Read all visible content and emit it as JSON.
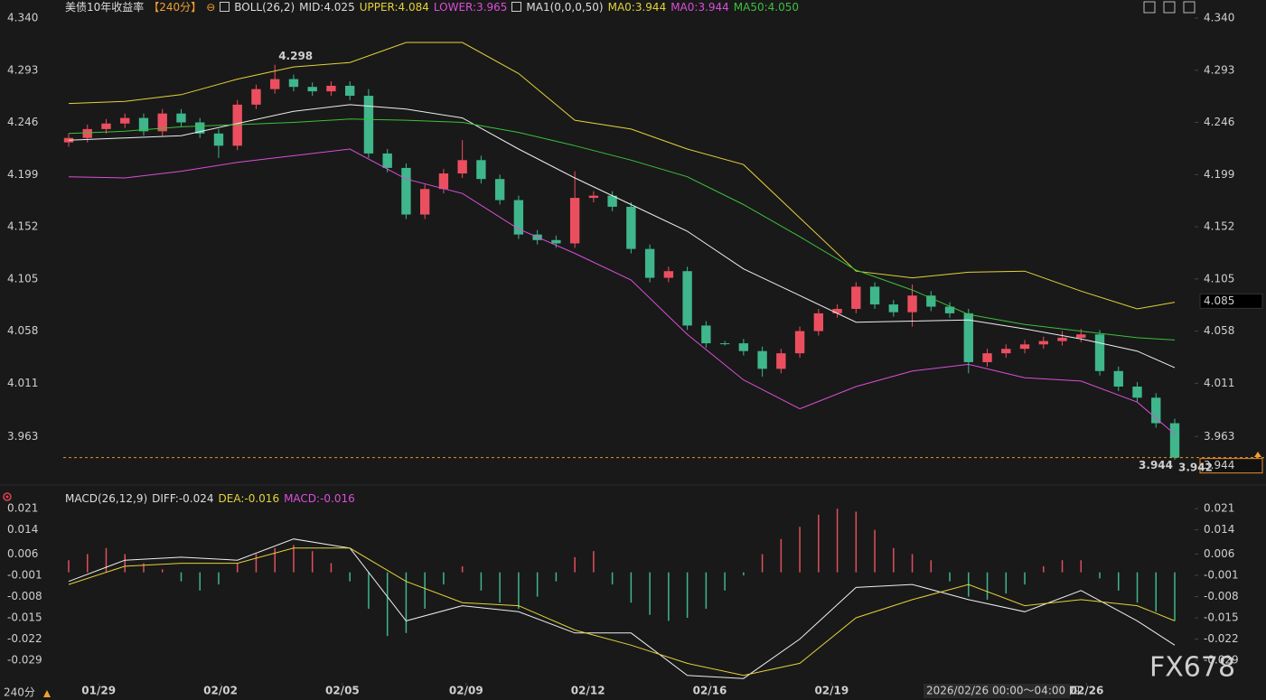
{
  "chart_data": [
    {
      "type": "candlestick",
      "title": "美债10年收益率",
      "period": "【240分】",
      "up_color": "#eb4f5f",
      "down_color": "#3fb68b",
      "legend": [
        {
          "text": "BOLL(26,2)",
          "color": "#dddddd"
        },
        {
          "text": "MID:4.025",
          "color": "#dddddd"
        },
        {
          "text": "UPPER:4.084",
          "color": "#e3d23a"
        },
        {
          "text": "LOWER:3.965",
          "color": "#d94fd9"
        },
        {
          "text": "MA1(0,0,0,50)",
          "color": "#dddddd"
        },
        {
          "text": "MA0:3.944",
          "color": "#e3d23a"
        },
        {
          "text": "MA0:3.944",
          "color": "#d94fd9"
        },
        {
          "text": "MA50:4.050",
          "color": "#3cc03c"
        }
      ],
      "xlim": [
        0,
        59
      ],
      "xticks": [
        {
          "value": 1.6,
          "label": "01/29"
        },
        {
          "value": 8.1,
          "label": "02/02"
        },
        {
          "value": 14.6,
          "label": "02/05"
        },
        {
          "value": 21.2,
          "label": "02/09"
        },
        {
          "value": 27.7,
          "label": "02/12"
        },
        {
          "value": 34.2,
          "label": "02/16"
        },
        {
          "value": 40.7,
          "label": "02/19"
        },
        {
          "value": 54.3,
          "label": "02/26"
        }
      ],
      "ylim": [
        3.925,
        4.34
      ],
      "yticks": [
        {
          "value": 4.34,
          "label": "4.340"
        },
        4.293,
        4.246,
        4.199,
        4.152,
        4.105,
        4.058,
        4.011,
        3.963
      ],
      "open": [
        4.228,
        4.232,
        4.24,
        4.245,
        4.25,
        4.238,
        4.254,
        4.246,
        4.236,
        4.225,
        4.262,
        4.276,
        4.285,
        4.278,
        4.274,
        4.279,
        4.27,
        4.218,
        4.205,
        4.163,
        4.186,
        4.2,
        4.212,
        4.195,
        4.176,
        4.145,
        4.14,
        4.137,
        4.178,
        4.18,
        4.17,
        4.132,
        4.106,
        4.112,
        4.063,
        4.047,
        4.047,
        4.04,
        4.024,
        4.038,
        4.058,
        4.074,
        4.078,
        4.098,
        4.082,
        4.075,
        4.09,
        4.08,
        4.074,
        4.03,
        4.038,
        4.042,
        4.046,
        4.049,
        4.052,
        4.055,
        4.022,
        4.008,
        3.998,
        3.975
      ],
      "high": [
        4.236,
        4.244,
        4.249,
        4.254,
        4.254,
        4.258,
        4.258,
        4.25,
        4.24,
        4.266,
        4.28,
        4.298,
        4.289,
        4.282,
        4.283,
        4.283,
        4.276,
        4.222,
        4.209,
        4.19,
        4.204,
        4.23,
        4.216,
        4.199,
        4.18,
        4.149,
        4.144,
        4.202,
        4.184,
        4.184,
        4.174,
        4.136,
        4.116,
        4.116,
        4.067,
        4.049,
        4.051,
        4.044,
        4.042,
        4.062,
        4.078,
        4.082,
        4.102,
        4.102,
        4.086,
        4.1,
        4.094,
        4.084,
        4.078,
        4.042,
        4.046,
        4.05,
        4.053,
        4.058,
        4.06,
        4.059,
        4.026,
        4.012,
        4.002,
        3.979
      ],
      "low": [
        4.224,
        4.228,
        4.236,
        4.241,
        4.234,
        4.234,
        4.242,
        4.232,
        4.214,
        4.221,
        4.258,
        4.272,
        4.274,
        4.27,
        4.27,
        4.266,
        4.214,
        4.201,
        4.159,
        4.159,
        4.182,
        4.196,
        4.191,
        4.172,
        4.141,
        4.136,
        4.133,
        4.133,
        4.174,
        4.166,
        4.128,
        4.102,
        4.102,
        4.059,
        4.043,
        4.045,
        4.036,
        4.017,
        4.02,
        4.034,
        4.054,
        4.07,
        4.074,
        4.078,
        4.071,
        4.062,
        4.076,
        4.07,
        4.02,
        4.026,
        4.034,
        4.038,
        4.042,
        4.045,
        4.048,
        4.018,
        4.004,
        3.994,
        3.971,
        3.942
      ],
      "close": [
        4.232,
        4.24,
        4.245,
        4.25,
        4.238,
        4.254,
        4.246,
        4.236,
        4.225,
        4.262,
        4.276,
        4.285,
        4.278,
        4.274,
        4.279,
        4.27,
        4.218,
        4.205,
        4.163,
        4.186,
        4.2,
        4.212,
        4.195,
        4.176,
        4.145,
        4.14,
        4.137,
        4.178,
        4.18,
        4.17,
        4.132,
        4.106,
        4.112,
        4.063,
        4.047,
        4.047,
        4.04,
        4.024,
        4.038,
        4.058,
        4.074,
        4.078,
        4.098,
        4.082,
        4.075,
        4.09,
        4.08,
        4.074,
        4.03,
        4.038,
        4.042,
        4.046,
        4.049,
        4.052,
        4.055,
        4.022,
        4.008,
        3.998,
        3.975,
        3.944
      ],
      "series": [
        {
          "color": "#e3d23a",
          "x": [
            0,
            3,
            6,
            9,
            12,
            15,
            18,
            21,
            24,
            27,
            30,
            33,
            36,
            39,
            42,
            45,
            48,
            51,
            54,
            57,
            59
          ],
          "values": [
            4.263,
            4.265,
            4.271,
            4.285,
            4.296,
            4.3,
            4.318,
            4.318,
            4.29,
            4.248,
            4.24,
            4.222,
            4.208,
            4.16,
            4.112,
            4.106,
            4.111,
            4.112,
            4.094,
            4.078,
            4.084
          ]
        },
        {
          "color": "#eeeeee",
          "x": [
            0,
            3,
            6,
            9,
            12,
            15,
            18,
            21,
            24,
            27,
            30,
            33,
            36,
            39,
            42,
            45,
            48,
            51,
            54,
            57,
            59
          ],
          "values": [
            4.23,
            4.232,
            4.234,
            4.245,
            4.256,
            4.262,
            4.258,
            4.25,
            4.222,
            4.196,
            4.172,
            4.148,
            4.114,
            4.09,
            4.066,
            4.067,
            4.068,
            4.06,
            4.051,
            4.04,
            4.025
          ]
        },
        {
          "color": "#d94fd9",
          "x": [
            0,
            3,
            6,
            9,
            12,
            15,
            18,
            21,
            24,
            27,
            30,
            33,
            36,
            39,
            42,
            45,
            48,
            51,
            54,
            57,
            59
          ],
          "values": [
            4.197,
            4.196,
            4.202,
            4.21,
            4.216,
            4.222,
            4.195,
            4.182,
            4.15,
            4.128,
            4.104,
            4.055,
            4.014,
            3.988,
            4.008,
            4.022,
            4.028,
            4.016,
            4.013,
            3.994,
            3.965
          ]
        },
        {
          "color": "#3cc03c",
          "x": [
            0,
            3,
            6,
            9,
            12,
            15,
            18,
            21,
            24,
            27,
            30,
            33,
            36,
            39,
            42,
            45,
            48,
            51,
            54,
            57,
            59
          ],
          "values": [
            4.236,
            4.238,
            4.242,
            4.244,
            4.246,
            4.249,
            4.248,
            4.246,
            4.237,
            4.225,
            4.212,
            4.197,
            4.172,
            4.143,
            4.113,
            4.095,
            4.073,
            4.064,
            4.058,
            4.052,
            4.05
          ]
        }
      ],
      "crosshair": {
        "price": 4.085,
        "time": "2026/02/26 00:00～04:00 四"
      },
      "period_selector": "240分",
      "watermark": "FX678"
    },
    {
      "type": "macd",
      "title": "MACD(26,12,9)",
      "legend": [
        {
          "text": "DIFF:-0.024",
          "color": "#dddddd"
        },
        {
          "text": "DEA:-0.016",
          "color": "#e3d23a"
        },
        {
          "text": "MACD:-0.016",
          "color": "#d94fd9"
        }
      ],
      "up_color": "#e04f5c",
      "down_color": "#3fb68b",
      "xlim": [
        0,
        59
      ],
      "ylim": [
        -0.0406,
        0.0264
      ],
      "yticks": [
        0.021,
        0.014,
        0.006,
        -0.001,
        -0.008,
        -0.015,
        -0.022,
        -0.029
      ],
      "values": [
        0.004,
        0.006,
        0.008,
        0.006,
        0.003,
        0.001,
        -0.003,
        -0.006,
        -0.004,
        0.003,
        0.006,
        0.008,
        0.009,
        0.007,
        0.003,
        -0.003,
        -0.012,
        -0.021,
        -0.02,
        -0.012,
        -0.004,
        0.002,
        -0.006,
        -0.01,
        -0.012,
        -0.008,
        -0.003,
        0.005,
        0.007,
        -0.004,
        -0.01,
        -0.014,
        -0.016,
        -0.015,
        -0.012,
        -0.006,
        -0.001,
        0.006,
        0.011,
        0.015,
        0.019,
        0.021,
        0.02,
        0.014,
        0.008,
        0.006,
        0.004,
        -0.003,
        -0.008,
        -0.009,
        -0.007,
        -0.004,
        0.002,
        0.004,
        0.004,
        -0.002,
        -0.006,
        -0.01,
        -0.013,
        -0.016
      ],
      "series": [
        {
          "color": "#eeeeee",
          "x": [
            0,
            3,
            6,
            9,
            12,
            15,
            18,
            21,
            24,
            27,
            30,
            33,
            36,
            39,
            42,
            45,
            48,
            51,
            54,
            57,
            59
          ],
          "values": [
            -0.003,
            0.004,
            0.005,
            0.004,
            0.011,
            0.008,
            -0.016,
            -0.011,
            -0.013,
            -0.02,
            -0.02,
            -0.034,
            -0.035,
            -0.022,
            -0.005,
            -0.004,
            -0.009,
            -0.013,
            -0.006,
            -0.016,
            -0.024
          ]
        },
        {
          "color": "#e3d23a",
          "x": [
            0,
            3,
            6,
            9,
            12,
            15,
            18,
            21,
            24,
            27,
            30,
            33,
            36,
            39,
            42,
            45,
            48,
            51,
            54,
            57,
            59
          ],
          "values": [
            -0.004,
            0.002,
            0.003,
            0.003,
            0.008,
            0.008,
            -0.003,
            -0.01,
            -0.011,
            -0.019,
            -0.024,
            -0.03,
            -0.034,
            -0.03,
            -0.015,
            -0.009,
            -0.004,
            -0.011,
            -0.009,
            -0.011,
            -0.016
          ]
        }
      ]
    }
  ]
}
